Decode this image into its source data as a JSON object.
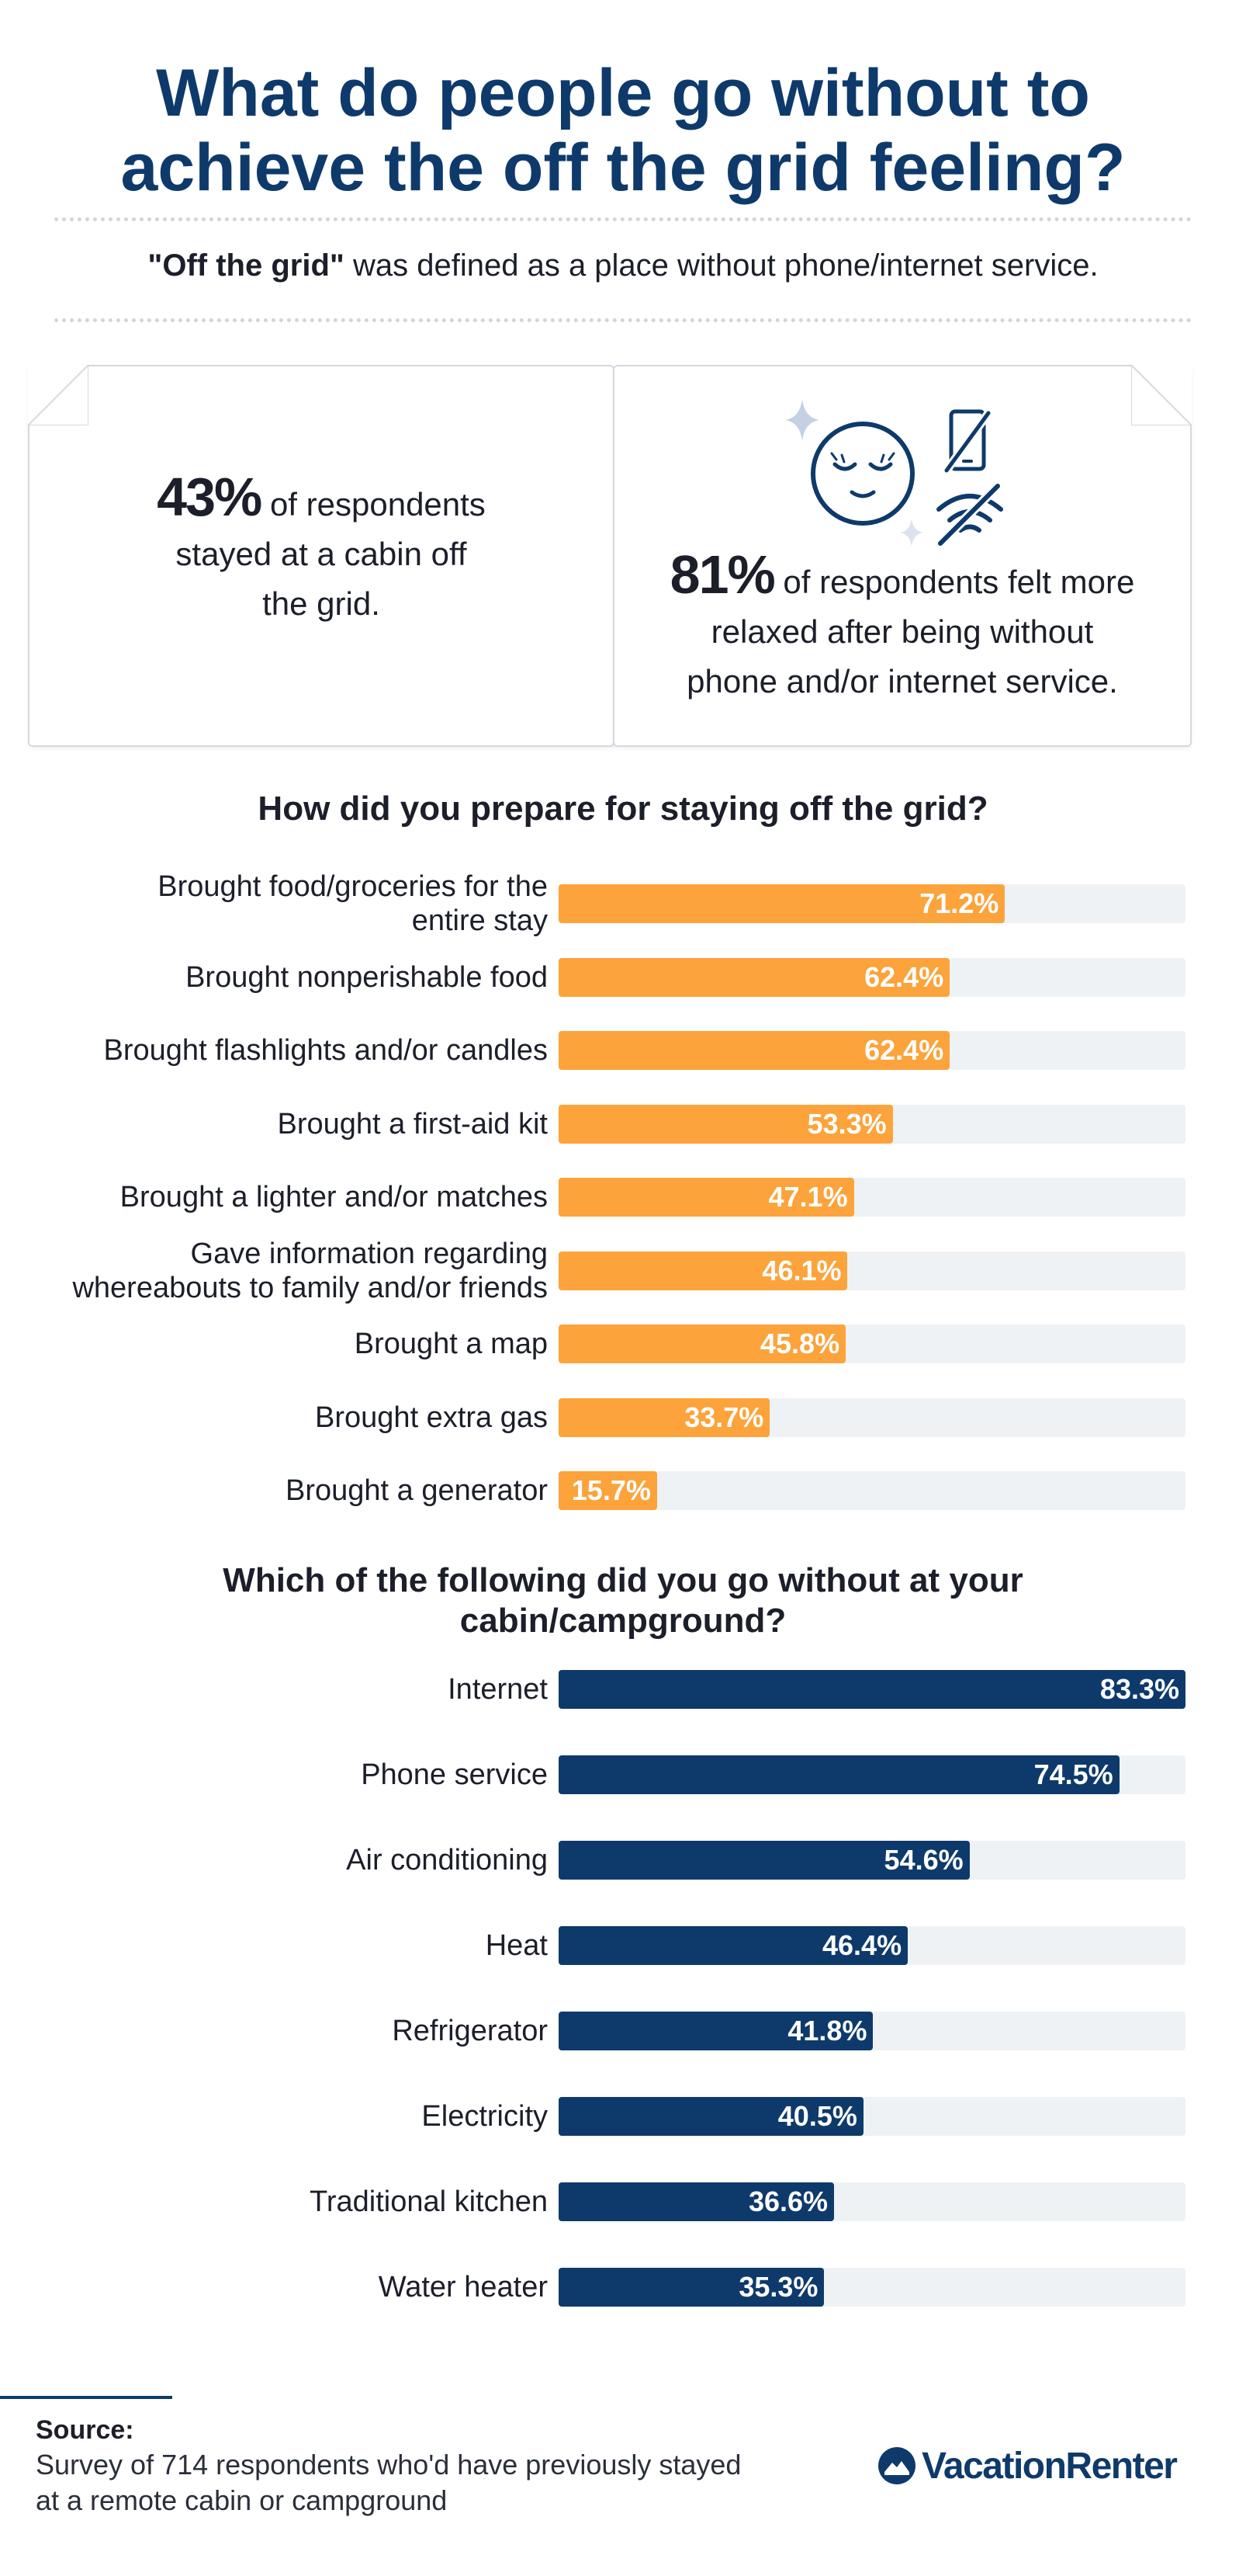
{
  "header": {
    "title_line1": "What do people go without to",
    "title_line2": "achieve the off the grid feeling?",
    "definition_bold": "\"Off the grid\"",
    "definition_rest": " was defined as a place without phone/internet service."
  },
  "stats": [
    {
      "value": "43%",
      "line1": " of respondents",
      "line2": "stayed at a cabin off",
      "line3": "the grid."
    },
    {
      "value": "81%",
      "line1": " of respondents felt more",
      "line2": "relaxed after being without",
      "line3": "phone and/or internet service."
    }
  ],
  "icons": {
    "face": "relaxed-face-icon",
    "sparkle": "sparkle-icon",
    "no_phone": "no-phone-icon",
    "no_wifi": "no-wifi-icon"
  },
  "chart_data": [
    {
      "type": "bar",
      "orientation": "horizontal",
      "title": "How did you prepare for staying off the grid?",
      "color": "#fca33b",
      "label_color": "#ffffff",
      "outside_label_color": "#1c1f2a",
      "xlim": [
        0,
        100
      ],
      "categories": [
        [
          "Brought food/groceries for the",
          "entire stay"
        ],
        [
          "Brought nonperishable food"
        ],
        [
          "Brought flashlights and/or candles"
        ],
        [
          "Brought a first-aid kit"
        ],
        [
          "Brought a lighter and/or matches"
        ],
        [
          "Gave information regarding",
          "whereabouts to family and/or friends"
        ],
        [
          "Brought a map"
        ],
        [
          "Brought extra gas"
        ],
        [
          "Brought a generator"
        ]
      ],
      "values": [
        71.2,
        62.4,
        62.4,
        53.3,
        47.1,
        46.1,
        45.8,
        33.7,
        15.7
      ],
      "value_labels": [
        "71.2%",
        "62.4%",
        "62.4%",
        "53.3%",
        "47.1%",
        "46.1%",
        "45.8%",
        "33.7%",
        "15.7%"
      ]
    },
    {
      "type": "bar",
      "orientation": "horizontal",
      "title": "Which of the following did you go without at your cabin/campground?",
      "title_lines": [
        "Which of the following did you go without at your",
        "cabin/campground?"
      ],
      "color": "#0e3a6b",
      "label_color": "#ffffff",
      "xlim": [
        0,
        83.3
      ],
      "categories": [
        [
          "Internet"
        ],
        [
          "Phone service"
        ],
        [
          "Air conditioning"
        ],
        [
          "Heat"
        ],
        [
          "Refrigerator"
        ],
        [
          "Electricity"
        ],
        [
          "Traditional kitchen"
        ],
        [
          "Water heater"
        ]
      ],
      "values": [
        83.3,
        74.5,
        54.6,
        46.4,
        41.8,
        40.5,
        36.6,
        35.3
      ],
      "value_labels": [
        "83.3%",
        "74.5%",
        "54.6%",
        "46.4%",
        "41.8%",
        "40.5%",
        "36.6%",
        "35.3%"
      ]
    }
  ],
  "footer": {
    "source_heading": "Source:",
    "source_line1": "Survey of 714 respondents who'd have previously stayed",
    "source_line2": "at a remote cabin or campground",
    "logo_text": "VacationRenter",
    "logo_icon": "vacationrenter-logo-icon"
  }
}
